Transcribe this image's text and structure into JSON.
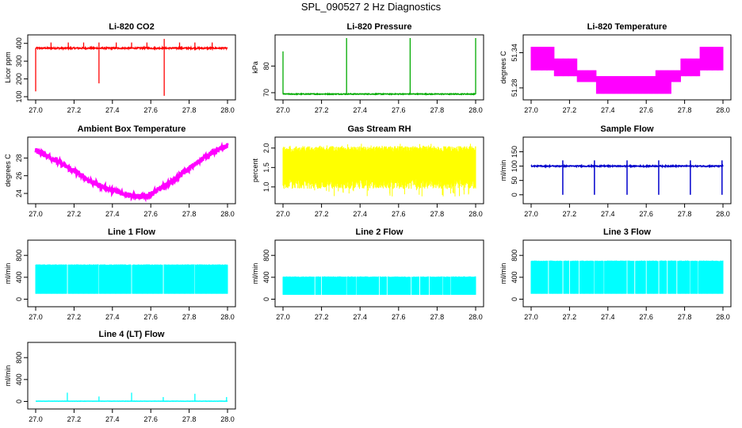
{
  "figure": {
    "title": "SPL_090527  2 Hz Diagnostics"
  },
  "chart_data": [
    {
      "type": "line",
      "title": "Li-820 CO2",
      "ylabel": "Licor ppm",
      "color": "#ff0000",
      "xlim": [
        27.0,
        28.0
      ],
      "xticks": [
        "27.0",
        "27.2",
        "27.4",
        "27.6",
        "27.8",
        "28.0"
      ],
      "ylim": [
        100,
        430
      ],
      "yticks": [
        "100",
        "200",
        "300",
        "400"
      ],
      "series": [
        {
          "name": "Li-820 CO2",
          "baseline": 373,
          "noise": 8,
          "spikes": [
            {
              "x": 27.0,
              "y": 130
            },
            {
              "x": 27.33,
              "y": 175
            },
            {
              "x": 27.67,
              "y": 105
            },
            {
              "x": 27.67,
              "y": 425
            },
            {
              "x": 27.08,
              "y": 405
            },
            {
              "x": 27.17,
              "y": 405
            },
            {
              "x": 27.25,
              "y": 405
            },
            {
              "x": 27.33,
              "y": 405
            },
            {
              "x": 27.42,
              "y": 405
            },
            {
              "x": 27.5,
              "y": 405
            },
            {
              "x": 27.58,
              "y": 405
            },
            {
              "x": 27.75,
              "y": 405
            },
            {
              "x": 27.83,
              "y": 405
            },
            {
              "x": 27.92,
              "y": 405
            }
          ]
        }
      ]
    },
    {
      "type": "line",
      "title": "Li-820 Pressure",
      "ylabel": "kPa",
      "color": "#00aa00",
      "xlim": [
        27.0,
        28.0
      ],
      "xticks": [
        "27.0",
        "27.2",
        "27.4",
        "27.6",
        "27.8",
        "28.0"
      ],
      "ylim": [
        68.5,
        90.5
      ],
      "yticks": [
        "70",
        "80"
      ],
      "series": [
        {
          "name": "Li-820 Pressure",
          "baseline": 69.5,
          "noise": 0.3,
          "spikes": [
            {
              "x": 27.0,
              "y": 85.5
            },
            {
              "x": 27.33,
              "y": 90.5
            },
            {
              "x": 27.66,
              "y": 90.5
            },
            {
              "x": 28.0,
              "y": 90.5
            }
          ]
        }
      ]
    },
    {
      "type": "line",
      "title": "Li-820 Temperature",
      "ylabel": "degrees C",
      "color": "#ff00ff",
      "xlim": [
        27.0,
        28.0
      ],
      "xticks": [
        "27.0",
        "27.2",
        "27.4",
        "27.6",
        "27.8",
        "28.0"
      ],
      "ylim": [
        51.265,
        51.365
      ],
      "yticks": [
        "51.28",
        "51.34"
      ],
      "series": [
        {
          "name": "Li-820 Temperature",
          "profile": [
            {
              "x": 27.0,
              "lo": 51.31,
              "hi": 51.35
            },
            {
              "x": 27.12,
              "lo": 51.3,
              "hi": 51.33
            },
            {
              "x": 27.24,
              "lo": 51.29,
              "hi": 51.31
            },
            {
              "x": 27.34,
              "lo": 51.27,
              "hi": 51.3
            },
            {
              "x": 27.65,
              "lo": 51.27,
              "hi": 51.31
            },
            {
              "x": 27.73,
              "lo": 51.29,
              "hi": 51.31
            },
            {
              "x": 27.78,
              "lo": 51.3,
              "hi": 51.33
            },
            {
              "x": 27.88,
              "lo": 51.31,
              "hi": 51.35
            },
            {
              "x": 28.0,
              "lo": 51.31,
              "hi": 51.35
            }
          ]
        }
      ]
    },
    {
      "type": "line",
      "title": "Ambient Box Temperature",
      "ylabel": "degrees C",
      "color": "#ff00ff",
      "xlim": [
        27.0,
        28.0
      ],
      "xticks": [
        "27.0",
        "27.2",
        "27.4",
        "27.6",
        "27.8",
        "28.0"
      ],
      "ylim": [
        23.2,
        30.0
      ],
      "yticks": [
        "24",
        "26",
        "28"
      ],
      "series": [
        {
          "name": "Ambient Box Temperature",
          "noise": 0.3,
          "points": [
            [
              27.0,
              28.9
            ],
            [
              27.1,
              27.8
            ],
            [
              27.2,
              26.5
            ],
            [
              27.3,
              25.2
            ],
            [
              27.4,
              24.3
            ],
            [
              27.5,
              23.8
            ],
            [
              27.55,
              23.6
            ],
            [
              27.6,
              23.9
            ],
            [
              27.7,
              25.2
            ],
            [
              27.8,
              26.8
            ],
            [
              27.9,
              28.4
            ],
            [
              28.0,
              29.4
            ]
          ]
        }
      ]
    },
    {
      "type": "line",
      "title": "Gas Stream RH",
      "ylabel": "percent",
      "color": "#ffff00",
      "xlim": [
        27.0,
        28.0
      ],
      "xticks": [
        "27.0",
        "27.2",
        "27.4",
        "27.6",
        "27.8",
        "28.0"
      ],
      "ylim": [
        0.65,
        2.2
      ],
      "yticks": [
        "1.0",
        "1.5",
        "2.0"
      ],
      "series": [
        {
          "name": "Gas Stream RH",
          "band": [
            0.95,
            2.05
          ],
          "ext": [
            0.75,
            2.15
          ]
        }
      ]
    },
    {
      "type": "line",
      "title": "Sample Flow",
      "ylabel": "ml/min",
      "color": "#0000cc",
      "xlim": [
        27.0,
        28.0
      ],
      "xticks": [
        "27.0",
        "27.2",
        "27.4",
        "27.6",
        "27.8",
        "28.0"
      ],
      "ylim": [
        -20,
        190
      ],
      "yticks": [
        "0",
        "50",
        "100",
        "150"
      ],
      "series": [
        {
          "name": "Sample Flow",
          "baseline": 100,
          "noise": 4,
          "dips": [
            27.165,
            27.33,
            27.5,
            27.665,
            27.83,
            27.995
          ],
          "dip_to": 0,
          "pre_spike": 120
        }
      ]
    },
    {
      "type": "line",
      "title": "Line 1 Flow",
      "ylabel": "ml/min",
      "color": "#00ffff",
      "xlim": [
        27.0,
        28.0
      ],
      "xticks": [
        "27.0",
        "27.2",
        "27.4",
        "27.6",
        "27.8",
        "28.0"
      ],
      "ylim": [
        -80,
        1020
      ],
      "yticks": [
        "0",
        "400",
        "800"
      ],
      "series": [
        {
          "name": "Line 1 Flow",
          "lo": 100,
          "hi": 630,
          "gaps": [
            27.165,
            27.33,
            27.5,
            27.665,
            27.83
          ]
        }
      ]
    },
    {
      "type": "line",
      "title": "Line 2 Flow",
      "ylabel": "ml/min",
      "color": "#00ffff",
      "xlim": [
        27.0,
        28.0
      ],
      "xticks": [
        "27.0",
        "27.2",
        "27.4",
        "27.6",
        "27.8",
        "28.0"
      ],
      "ylim": [
        -80,
        1020
      ],
      "yticks": [
        "0",
        "400",
        "800"
      ],
      "series": [
        {
          "name": "Line 2 Flow",
          "lo": 80,
          "hi": 410,
          "gaps": [
            27.165,
            27.2,
            27.33,
            27.38,
            27.5,
            27.54,
            27.665,
            27.71,
            27.76,
            27.83,
            27.87
          ]
        }
      ]
    },
    {
      "type": "line",
      "title": "Line 3 Flow",
      "ylabel": "ml/min",
      "color": "#00ffff",
      "xlim": [
        27.0,
        28.0
      ],
      "xticks": [
        "27.0",
        "27.2",
        "27.4",
        "27.6",
        "27.8",
        "28.0"
      ],
      "ylim": [
        -80,
        1020
      ],
      "yticks": [
        "0",
        "400",
        "800"
      ],
      "series": [
        {
          "name": "Line 3 Flow",
          "lo": 100,
          "hi": 700,
          "gaps": [
            27.09,
            27.165,
            27.2,
            27.25,
            27.33,
            27.38,
            27.5,
            27.54,
            27.6,
            27.665,
            27.71,
            27.76,
            27.83,
            27.87
          ]
        }
      ]
    },
    {
      "type": "line",
      "title": "Line 4 (LT) Flow",
      "ylabel": "ml/min",
      "color": "#00ffff",
      "xlim": [
        27.0,
        28.0
      ],
      "xticks": [
        "27.0",
        "27.2",
        "27.4",
        "27.6",
        "27.8",
        "28.0"
      ],
      "ylim": [
        -80,
        1020
      ],
      "yticks": [
        "0",
        "400",
        "800"
      ],
      "series": [
        {
          "name": "Line 4 (LT) Flow",
          "baseline": 5,
          "noise": 3,
          "spikes": [
            {
              "x": 27.165,
              "y": 160
            },
            {
              "x": 27.33,
              "y": 90
            },
            {
              "x": 27.5,
              "y": 160
            },
            {
              "x": 27.665,
              "y": 80
            },
            {
              "x": 27.83,
              "y": 140
            },
            {
              "x": 27.995,
              "y": 80
            }
          ]
        }
      ]
    }
  ]
}
